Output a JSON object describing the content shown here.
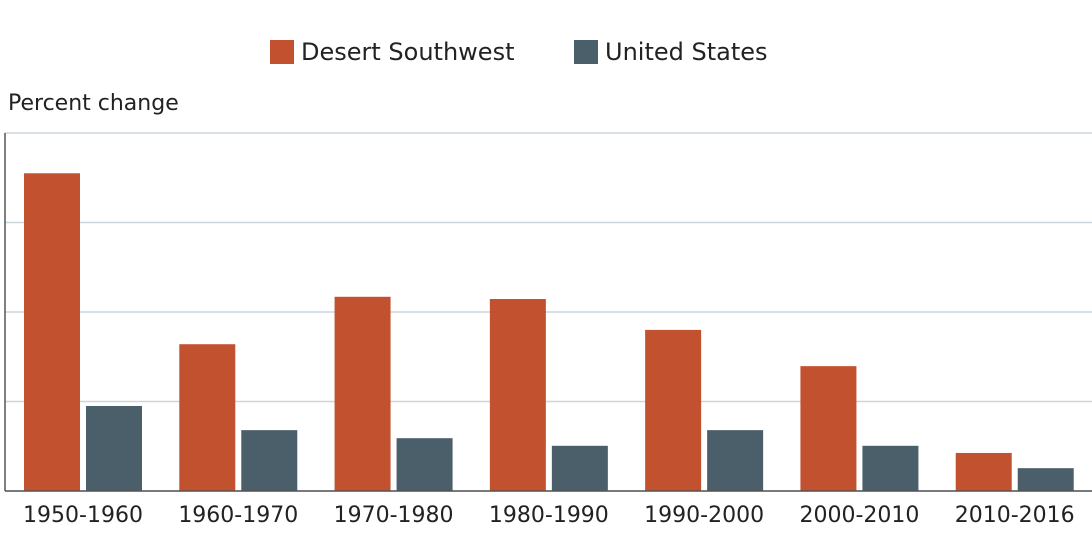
{
  "chart_data": {
    "type": "bar",
    "y_label": "Percent change",
    "categories": [
      "1950-1960",
      "1960-1970",
      "1970-1980",
      "1980-1990",
      "1990-2000",
      "2000-2010",
      "2010-2016"
    ],
    "series": [
      {
        "name": "Desert Southwest",
        "color": "#c25130",
        "values": [
          71,
          32.8,
          43.4,
          42.9,
          36,
          27.9,
          8.5
        ]
      },
      {
        "name": "United States",
        "color": "#4b5f6b",
        "values": [
          19,
          13.6,
          11.8,
          10.1,
          13.6,
          10.1,
          5.1
        ]
      }
    ],
    "ylim": [
      0,
      80
    ],
    "yticks": [
      0,
      20,
      40,
      60,
      80
    ],
    "grid": true
  }
}
